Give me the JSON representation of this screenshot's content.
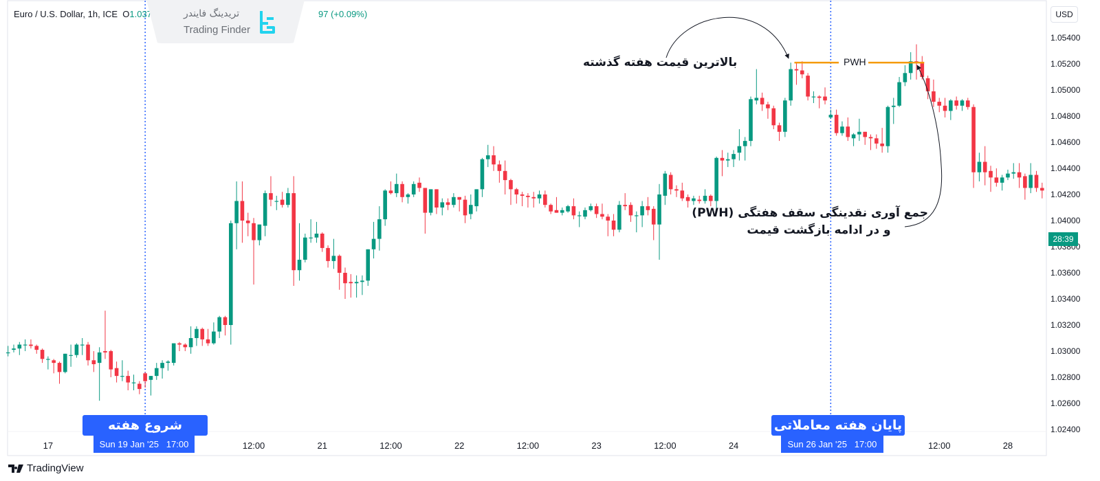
{
  "header": {
    "symbol": "Euro / U.S. Dollar, 1h, ICE",
    "open_label": "O",
    "open_value": "1.03753",
    "change_visible": "97 (+0.09%)"
  },
  "watermark": {
    "text_fa": "تریدینگ فایندر",
    "text_en": "Trading Finder",
    "color": "#22d3ee"
  },
  "price_axis": {
    "currency": "USD",
    "countdown": "28:39",
    "countdown_price": 1.0386
  },
  "footer": {
    "brand": "TradingView"
  },
  "annotations": {
    "pwh_note": "بالاترین قیمت هفته گذشته",
    "pwh_label": "PWH",
    "pwh_price": 1.0521,
    "sweep_line1": "جمع آوری نقدینگی سقف هفتگی (PWH)",
    "sweep_line2": "و در ادامه بازگشت قیمت",
    "week_start": "شروع هفته معاملاتی",
    "week_end": "پایان هفته معاملاتی",
    "week_start_date": "Sun 19 Jan '25   17:00",
    "week_end_date": "Sun 26 Jan '25   17:00"
  },
  "colors": {
    "up": "#089981",
    "down": "#f23645",
    "pwh": "#f59a0c",
    "marker": "#2962ff"
  },
  "chart_data": {
    "type": "candlestick",
    "title": "Euro / U.S. Dollar, 1h, ICE",
    "ylim": [
      1.0232,
      1.0552
    ],
    "y_ticks": [
      "1.05400",
      "1.05200",
      "1.05000",
      "1.04800",
      "1.04600",
      "1.04400",
      "1.04200",
      "1.04000",
      "1.03800",
      "1.03600",
      "1.03400",
      "1.03200",
      "1.03000",
      "1.02800",
      "1.02600",
      "1.02400"
    ],
    "x_ticks": [
      {
        "label": "17",
        "bar": 7
      },
      {
        "label": "12:00",
        "bar": 43
      },
      {
        "label": "21",
        "bar": 55
      },
      {
        "label": "12:00",
        "bar": 67
      },
      {
        "label": "22",
        "bar": 79
      },
      {
        "label": "12:00",
        "bar": 91
      },
      {
        "label": "23",
        "bar": 103
      },
      {
        "label": "12:00",
        "bar": 115
      },
      {
        "label": "24",
        "bar": 127
      },
      {
        "label": "12:00",
        "bar": 163
      },
      {
        "label": "28",
        "bar": 175
      }
    ],
    "week_markers": [
      {
        "bar": 24,
        "label": "Sun 19 Jan '25 17:00"
      },
      {
        "bar": 144,
        "label": "Sun 26 Jan '25 17:00"
      }
    ],
    "pwh": {
      "price": 1.0521,
      "from_bar": 138,
      "to_bar": 160
    },
    "ohlc_fields": [
      "open",
      "high",
      "low",
      "close"
    ],
    "candles": [
      [
        1.0299,
        1.0304,
        1.0296,
        1.0299
      ],
      [
        1.0301,
        1.0305,
        1.0299,
        1.0302
      ],
      [
        1.0302,
        1.0307,
        1.0297,
        1.0305
      ],
      [
        1.0305,
        1.0309,
        1.03,
        1.0305
      ],
      [
        1.0305,
        1.0309,
        1.0302,
        1.0304
      ],
      [
        1.0304,
        1.0305,
        1.0298,
        1.0301
      ],
      [
        1.0301,
        1.0302,
        1.0291,
        1.0294
      ],
      [
        1.0294,
        1.0296,
        1.0286,
        1.0294
      ],
      [
        1.0293,
        1.0294,
        1.0283,
        1.0291
      ],
      [
        1.0291,
        1.0292,
        1.0275,
        1.0284
      ],
      [
        1.0284,
        1.0298,
        1.0283,
        1.0298
      ],
      [
        1.0297,
        1.0305,
        1.0288,
        1.0297
      ],
      [
        1.0297,
        1.0306,
        1.0295,
        1.0305
      ],
      [
        1.0305,
        1.031,
        1.0297,
        1.0305
      ],
      [
        1.0305,
        1.0307,
        1.0289,
        1.0293
      ],
      [
        1.0293,
        1.03,
        1.0284,
        1.029
      ],
      [
        1.0291,
        1.0303,
        1.0262,
        1.0299
      ],
      [
        1.03,
        1.0331,
        1.0294,
        1.0299
      ],
      [
        1.03,
        1.0301,
        1.028,
        1.0286
      ],
      [
        1.0287,
        1.0292,
        1.0276,
        1.0281
      ],
      [
        1.0281,
        1.0293,
        1.0277,
        1.0281
      ],
      [
        1.0281,
        1.0285,
        1.027,
        1.0276
      ],
      [
        1.0276,
        1.0282,
        1.027,
        1.0276
      ],
      [
        1.0275,
        1.0277,
        1.0267,
        1.0271
      ],
      [
        1.0283,
        1.0284,
        1.0272,
        1.0277
      ],
      [
        1.0278,
        1.0281,
        1.0266,
        1.0281
      ],
      [
        1.0281,
        1.0291,
        1.0278,
        1.0287
      ],
      [
        1.0287,
        1.0293,
        1.0279,
        1.0291
      ],
      [
        1.0291,
        1.0293,
        1.0285,
        1.0292
      ],
      [
        1.0291,
        1.0306,
        1.0289,
        1.0306
      ],
      [
        1.0306,
        1.0307,
        1.03,
        1.0305
      ],
      [
        1.0305,
        1.0306,
        1.03,
        1.0303
      ],
      [
        1.0303,
        1.0319,
        1.0298,
        1.031
      ],
      [
        1.031,
        1.0319,
        1.0304,
        1.0317
      ],
      [
        1.0317,
        1.0318,
        1.0304,
        1.0309
      ],
      [
        1.0309,
        1.0317,
        1.0304,
        1.0306
      ],
      [
        1.0306,
        1.0322,
        1.0305,
        1.0315
      ],
      [
        1.0315,
        1.0327,
        1.031,
        1.0326
      ],
      [
        1.0326,
        1.0327,
        1.0312,
        1.032
      ],
      [
        1.032,
        1.04,
        1.0305,
        1.0398
      ],
      [
        1.0398,
        1.043,
        1.0378,
        1.0415
      ],
      [
        1.0415,
        1.043,
        1.0383,
        1.04
      ],
      [
        1.04,
        1.0406,
        1.0388,
        1.0398
      ],
      [
        1.0398,
        1.0402,
        1.0351,
        1.0385
      ],
      [
        1.0385,
        1.0397,
        1.0381,
        1.0397
      ],
      [
        1.0396,
        1.0423,
        1.0388,
        1.0421
      ],
      [
        1.0421,
        1.0434,
        1.0411,
        1.0416
      ],
      [
        1.0415,
        1.0419,
        1.0408,
        1.0415
      ],
      [
        1.0416,
        1.0422,
        1.041,
        1.0412
      ],
      [
        1.0412,
        1.0425,
        1.041,
        1.0421
      ],
      [
        1.0421,
        1.0434,
        1.035,
        1.0362
      ],
      [
        1.0362,
        1.0398,
        1.0354,
        1.037
      ],
      [
        1.037,
        1.039,
        1.0368,
        1.0387
      ],
      [
        1.0387,
        1.0401,
        1.0383,
        1.0387
      ],
      [
        1.0387,
        1.0399,
        1.0383,
        1.039
      ],
      [
        1.039,
        1.0391,
        1.0376,
        1.0379
      ],
      [
        1.0379,
        1.0381,
        1.0364,
        1.0369
      ],
      [
        1.0369,
        1.0386,
        1.0363,
        1.0373
      ],
      [
        1.0373,
        1.0374,
        1.0347,
        1.036
      ],
      [
        1.036,
        1.0364,
        1.034,
        1.0352
      ],
      [
        1.0353,
        1.0359,
        1.0341,
        1.0352
      ],
      [
        1.0352,
        1.0358,
        1.0341,
        1.0353
      ],
      [
        1.0353,
        1.0358,
        1.0343,
        1.0354
      ],
      [
        1.0354,
        1.0378,
        1.035,
        1.0378
      ],
      [
        1.0378,
        1.0399,
        1.0371,
        1.0386
      ],
      [
        1.0386,
        1.0411,
        1.0377,
        1.0401
      ],
      [
        1.0401,
        1.0424,
        1.0396,
        1.0423
      ],
      [
        1.0423,
        1.043,
        1.042,
        1.0421
      ],
      [
        1.0421,
        1.0436,
        1.0418,
        1.0428
      ],
      [
        1.0428,
        1.043,
        1.0414,
        1.0418
      ],
      [
        1.0418,
        1.0421,
        1.0413,
        1.042
      ],
      [
        1.042,
        1.043,
        1.0418,
        1.0428
      ],
      [
        1.0429,
        1.0433,
        1.0422,
        1.0425
      ],
      [
        1.0425,
        1.0425,
        1.039,
        1.0406
      ],
      [
        1.0406,
        1.0424,
        1.0404,
        1.0424
      ],
      [
        1.0424,
        1.0424,
        1.0405,
        1.041
      ],
      [
        1.041,
        1.0417,
        1.0404,
        1.0414
      ],
      [
        1.0414,
        1.0417,
        1.0408,
        1.0412
      ],
      [
        1.0412,
        1.0421,
        1.041,
        1.0418
      ],
      [
        1.0418,
        1.0418,
        1.0407,
        1.0416
      ],
      [
        1.0416,
        1.0419,
        1.0398,
        1.0404
      ],
      [
        1.0405,
        1.042,
        1.0401,
        1.0412
      ],
      [
        1.0411,
        1.0424,
        1.0407,
        1.0424
      ],
      [
        1.0424,
        1.0448,
        1.0418,
        1.0447
      ],
      [
        1.0447,
        1.0458,
        1.0441,
        1.045
      ],
      [
        1.045,
        1.0457,
        1.0438,
        1.0443
      ],
      [
        1.0443,
        1.0446,
        1.0429,
        1.0438
      ],
      [
        1.0438,
        1.0446,
        1.042,
        1.0431
      ],
      [
        1.0431,
        1.0432,
        1.0412,
        1.0424
      ],
      [
        1.0424,
        1.0425,
        1.0413,
        1.042
      ],
      [
        1.042,
        1.0422,
        1.0411,
        1.0419
      ],
      [
        1.0419,
        1.0421,
        1.041,
        1.0418
      ],
      [
        1.0418,
        1.0422,
        1.041,
        1.0417
      ],
      [
        1.0417,
        1.0423,
        1.0413,
        1.042
      ],
      [
        1.042,
        1.0423,
        1.041,
        1.0412
      ],
      [
        1.0412,
        1.0413,
        1.0405,
        1.0407
      ],
      [
        1.0408,
        1.0418,
        1.0406,
        1.0406
      ],
      [
        1.0406,
        1.041,
        1.0404,
        1.0408
      ],
      [
        1.0407,
        1.0412,
        1.0406,
        1.0411
      ],
      [
        1.0411,
        1.0417,
        1.0401,
        1.0404
      ],
      [
        1.0404,
        1.0407,
        1.0395,
        1.0404
      ],
      [
        1.0403,
        1.041,
        1.0401,
        1.0408
      ],
      [
        1.0408,
        1.0413,
        1.0407,
        1.0411
      ],
      [
        1.0411,
        1.0413,
        1.0402,
        1.0405
      ],
      [
        1.0405,
        1.0413,
        1.0401,
        1.0403
      ],
      [
        1.0403,
        1.0405,
        1.0388,
        1.04
      ],
      [
        1.04,
        1.0405,
        1.0388,
        1.0393
      ],
      [
        1.0393,
        1.0415,
        1.0391,
        1.0412
      ],
      [
        1.0412,
        1.0421,
        1.0408,
        1.0411
      ],
      [
        1.0412,
        1.0414,
        1.0399,
        1.0404
      ],
      [
        1.0404,
        1.0407,
        1.0391,
        1.0404
      ],
      [
        1.0404,
        1.0415,
        1.0395,
        1.0411
      ],
      [
        1.0411,
        1.0418,
        1.0404,
        1.0408
      ],
      [
        1.0409,
        1.0411,
        1.0385,
        1.0397
      ],
      [
        1.0397,
        1.0428,
        1.037,
        1.042
      ],
      [
        1.0419,
        1.0438,
        1.0412,
        1.0436
      ],
      [
        1.0435,
        1.0437,
        1.042,
        1.0424
      ],
      [
        1.0424,
        1.0427,
        1.0418,
        1.0423
      ],
      [
        1.0423,
        1.0429,
        1.0415,
        1.0417
      ],
      [
        1.0418,
        1.042,
        1.041,
        1.0415
      ],
      [
        1.0415,
        1.0419,
        1.0412,
        1.0417
      ],
      [
        1.0416,
        1.0419,
        1.0413,
        1.0415
      ],
      [
        1.0415,
        1.0424,
        1.0413,
        1.0419
      ],
      [
        1.0419,
        1.042,
        1.0411,
        1.0415
      ],
      [
        1.0415,
        1.0449,
        1.0406,
        1.0448
      ],
      [
        1.0448,
        1.0454,
        1.0434,
        1.0446
      ],
      [
        1.0446,
        1.0452,
        1.0441,
        1.0447
      ],
      [
        1.0447,
        1.0454,
        1.0441,
        1.0451
      ],
      [
        1.0452,
        1.047,
        1.0446,
        1.0457
      ],
      [
        1.0457,
        1.0464,
        1.0446,
        1.0461
      ],
      [
        1.0461,
        1.0495,
        1.0457,
        1.0493
      ],
      [
        1.0492,
        1.0516,
        1.0489,
        1.0494
      ],
      [
        1.0494,
        1.0498,
        1.0484,
        1.0489
      ],
      [
        1.0489,
        1.0491,
        1.0478,
        1.0486
      ],
      [
        1.0486,
        1.0488,
        1.047,
        1.0473
      ],
      [
        1.0473,
        1.0475,
        1.0461,
        1.0468
      ],
      [
        1.0468,
        1.0494,
        1.0464,
        1.0492
      ],
      [
        1.0492,
        1.0521,
        1.0488,
        1.0516
      ],
      [
        1.0516,
        1.0521,
        1.0504,
        1.0515
      ],
      [
        1.0515,
        1.0522,
        1.0509,
        1.0512
      ],
      [
        1.0511,
        1.0513,
        1.0492,
        1.0495
      ],
      [
        1.0495,
        1.0499,
        1.049,
        1.0495
      ],
      [
        1.0495,
        1.0496,
        1.0486,
        1.0494
      ],
      [
        1.0495,
        1.0502,
        1.0489,
        1.0492
      ],
      [
        1.0479,
        1.0485,
        1.0478,
        1.0481
      ],
      [
        1.0481,
        1.0485,
        1.0465,
        1.0467
      ],
      [
        1.0467,
        1.0476,
        1.0465,
        1.0472
      ],
      [
        1.0472,
        1.0479,
        1.0461,
        1.0464
      ],
      [
        1.0463,
        1.0467,
        1.0457,
        1.0466
      ],
      [
        1.0466,
        1.0478,
        1.0461,
        1.0468
      ],
      [
        1.0468,
        1.0468,
        1.0458,
        1.0464
      ],
      [
        1.0464,
        1.0466,
        1.0454,
        1.0463
      ],
      [
        1.0463,
        1.0466,
        1.0455,
        1.0459
      ],
      [
        1.0459,
        1.0471,
        1.0452,
        1.0457
      ],
      [
        1.0457,
        1.0488,
        1.0452,
        1.0487
      ],
      [
        1.0487,
        1.0494,
        1.0474,
        1.0488
      ],
      [
        1.0488,
        1.051,
        1.0487,
        1.0506
      ],
      [
        1.0506,
        1.0519,
        1.0503,
        1.0513
      ],
      [
        1.0513,
        1.0529,
        1.0508,
        1.0522
      ],
      [
        1.0522,
        1.0535,
        1.0508,
        1.0521
      ],
      [
        1.0521,
        1.0526,
        1.0508,
        1.051
      ],
      [
        1.0509,
        1.0511,
        1.0493,
        1.0499
      ],
      [
        1.0499,
        1.0508,
        1.0487,
        1.0491
      ],
      [
        1.0491,
        1.0494,
        1.0483,
        1.0488
      ],
      [
        1.0488,
        1.0494,
        1.0479,
        1.0484
      ],
      [
        1.0484,
        1.0493,
        1.0477,
        1.0492
      ],
      [
        1.0492,
        1.0495,
        1.0485,
        1.0488
      ],
      [
        1.0488,
        1.0493,
        1.0484,
        1.0492
      ],
      [
        1.0492,
        1.0494,
        1.0485,
        1.0487
      ],
      [
        1.0487,
        1.0489,
        1.0425,
        1.0437
      ],
      [
        1.0437,
        1.0452,
        1.043,
        1.0445
      ],
      [
        1.0445,
        1.0457,
        1.0427,
        1.0437
      ],
      [
        1.0438,
        1.0442,
        1.0422,
        1.0433
      ],
      [
        1.0433,
        1.044,
        1.0426,
        1.0429
      ],
      [
        1.0429,
        1.0435,
        1.0423,
        1.0433
      ],
      [
        1.0433,
        1.0439,
        1.0431,
        1.0436
      ],
      [
        1.0436,
        1.0444,
        1.0432,
        1.0437
      ],
      [
        1.0437,
        1.0444,
        1.0425,
        1.0433
      ],
      [
        1.0434,
        1.0436,
        1.0416,
        1.0425
      ],
      [
        1.0425,
        1.0444,
        1.0421,
        1.0435
      ],
      [
        1.0435,
        1.0438,
        1.0422,
        1.0425
      ],
      [
        1.0425,
        1.0429,
        1.0417,
        1.0423
      ]
    ]
  }
}
